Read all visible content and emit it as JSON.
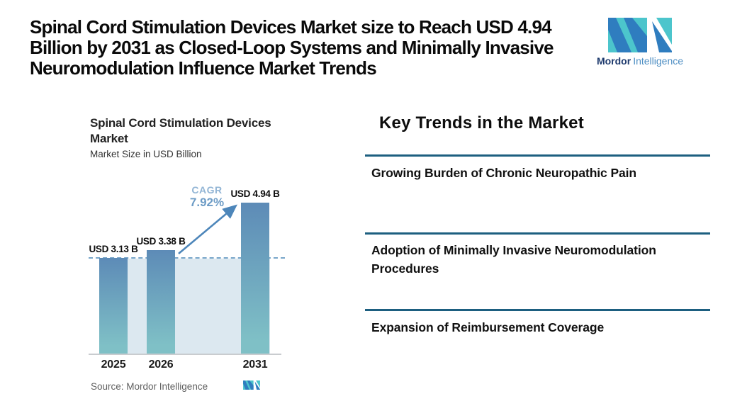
{
  "header": {
    "title_lines": [
      "Spinal Cord Stimulation Devices Market size to Reach USD 4.94",
      "Billion by 2031 as Closed-Loop Systems and Minimally Invasive",
      "Neuromodulation Influence Market Trends"
    ],
    "brand": {
      "name_bold": "Mordor",
      "name_light": "Intelligence",
      "teal": "#4cc5cc",
      "blue": "#2f7dbf",
      "wordmark_bold_color": "#1e3a6d",
      "wordmark_light_color": "#4d8ec3"
    }
  },
  "chart_data": {
    "type": "bar",
    "title_lines": [
      "Spinal Cord Stimulation Devices",
      "Market"
    ],
    "title": "Spinal Cord Stimulation Devices Market",
    "subtitle": "Market Size in USD Billion",
    "categories": [
      "2025",
      "2026",
      "2031"
    ],
    "values": [
      3.13,
      3.38,
      4.94
    ],
    "bar_labels": [
      "USD 3.13 B",
      "USD 3.38 B",
      "USD 4.94 B"
    ],
    "ylim": [
      0,
      5.2
    ],
    "baseline_value": 3.13,
    "cagr": {
      "label": "CAGR",
      "value": "7.92%"
    },
    "source": "Source: Mordor Intelligence",
    "colors": {
      "bar_top": "#5d8bb7",
      "bar_bottom": "#7fc0c6",
      "band": "#dce8f0",
      "dashed_line": "#78a6ca",
      "arrow": "#4d86ba",
      "cagr_label": "#92b5d5",
      "cagr_value": "#6d9cc6",
      "axis": "#c9cccf"
    }
  },
  "trends": {
    "heading": "Key Trends in the Market",
    "divider_color": "#1d5f80",
    "items": [
      "Growing Burden of Chronic Neuropathic Pain",
      "Adoption of Minimally Invasive Neuromodulation Procedures",
      "Expansion of Reimbursement Coverage"
    ]
  }
}
